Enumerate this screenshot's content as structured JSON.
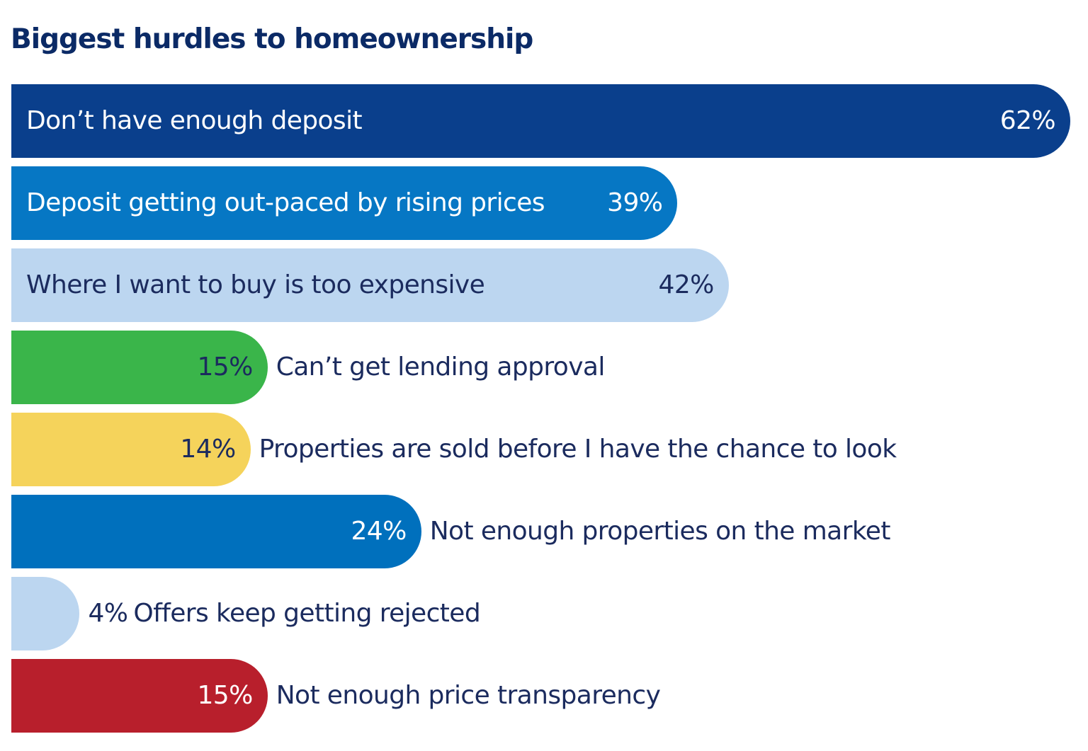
{
  "chart_data": {
    "type": "bar",
    "orientation": "horizontal",
    "title": "Biggest hurdles to homeownership",
    "xlim": [
      0,
      62
    ],
    "grid": false,
    "categories": [
      "Don’t have enough deposit",
      "Deposit getting out-paced by rising prices",
      "Where I want to buy is too expensive",
      "Can’t get lending approval",
      "Properties are sold before I have the chance to look",
      "Not enough properties on the market",
      "Offers keep getting rejected",
      "Not enough price transparency"
    ],
    "values": [
      62,
      39,
      42,
      15,
      14,
      24,
      4,
      15
    ],
    "value_labels": [
      "62%",
      "39%",
      "42%",
      "15%",
      "14%",
      "24%",
      "4%",
      "15%"
    ],
    "colors": [
      "#0a3f8c",
      "#0677c4",
      "#bcd6f0",
      "#3ab54a",
      "#f5d35b",
      "#0070bd",
      "#bcd6f0",
      "#b81f2c"
    ],
    "text_colors": [
      "#ffffff",
      "#ffffff",
      "#1b2b5e",
      "#1b2b5e",
      "#1b2b5e",
      "#ffffff",
      "#1b2b5e",
      "#ffffff"
    ]
  }
}
